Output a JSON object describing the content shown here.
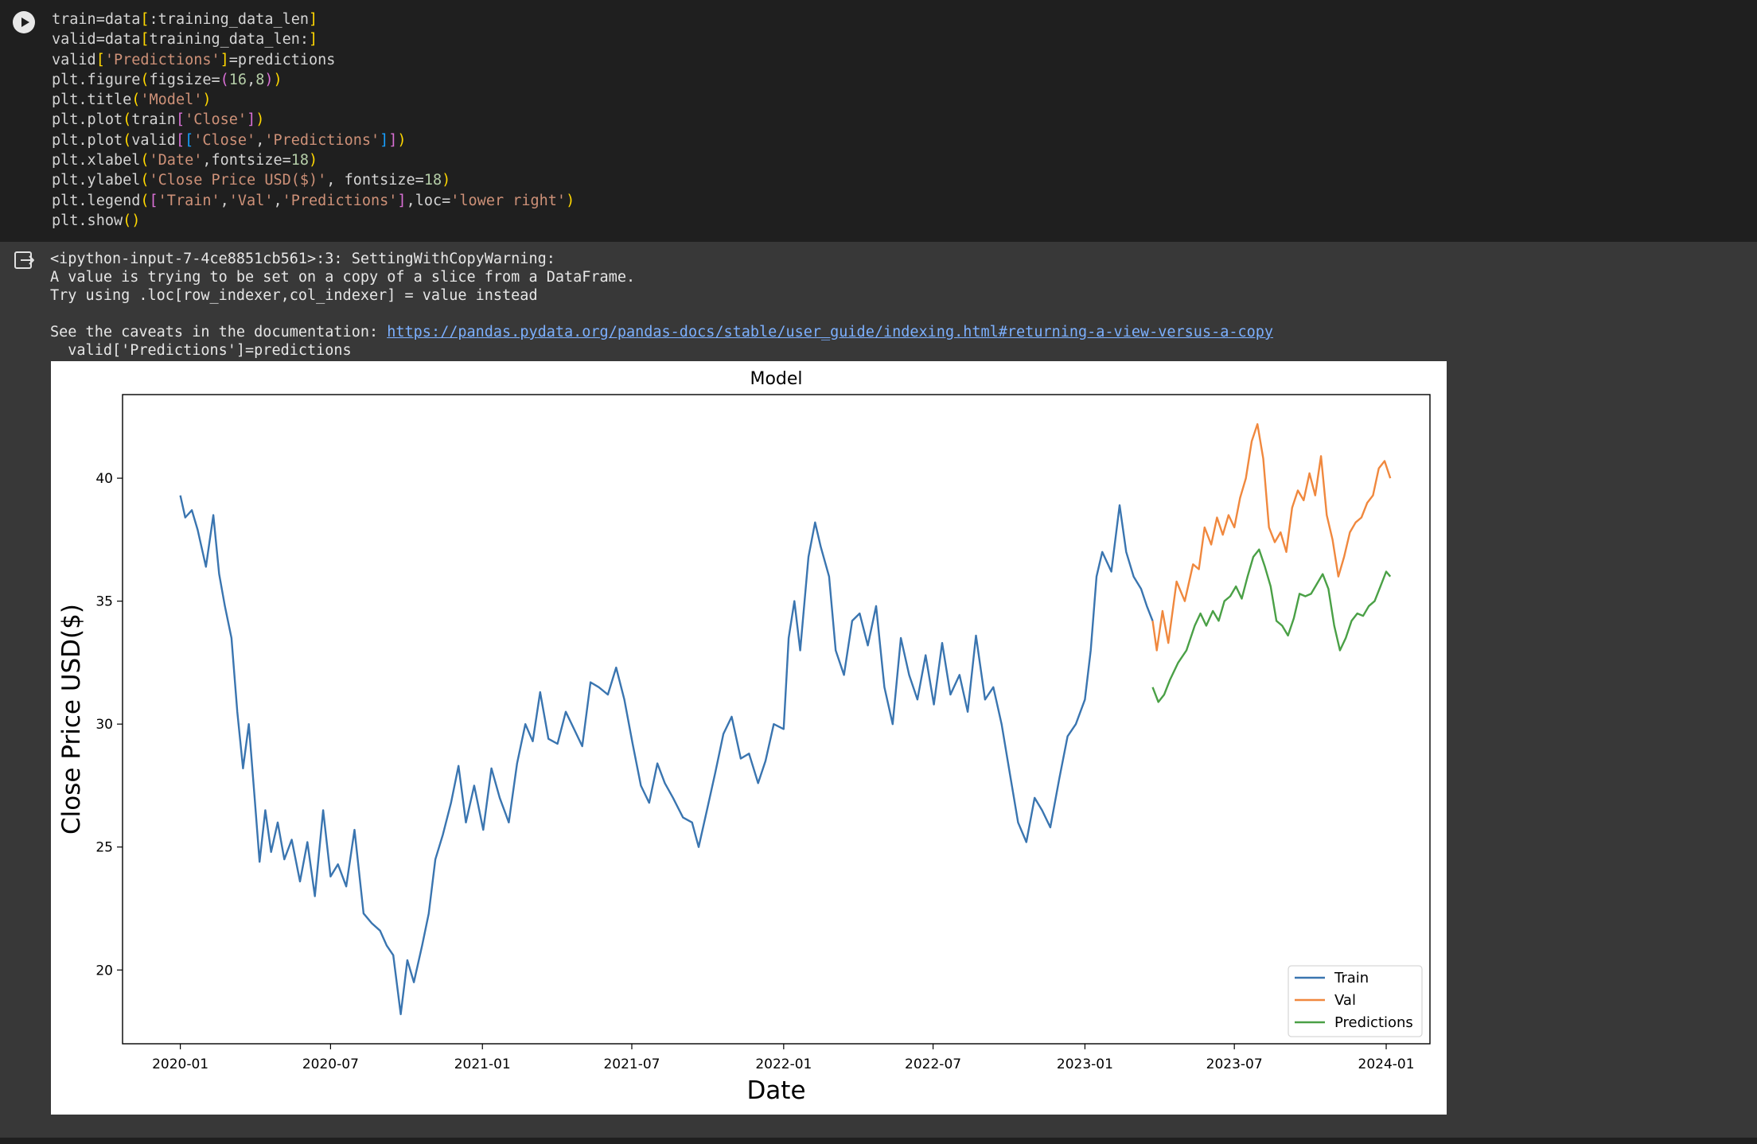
{
  "code_cell": {
    "lines": [
      [
        [
          "train=data",
          ""
        ],
        [
          "[",
          "b"
        ],
        [
          ":training_data_len",
          ""
        ],
        [
          "]",
          "b"
        ]
      ],
      [
        [
          "valid=data",
          ""
        ],
        [
          "[",
          "b"
        ],
        [
          "training_data_len:",
          ""
        ],
        [
          "]",
          "b"
        ]
      ],
      [
        [
          "valid",
          ""
        ],
        [
          "[",
          "b"
        ],
        [
          "'Predictions'",
          "s"
        ],
        [
          "]",
          "b"
        ],
        [
          "=predictions",
          ""
        ]
      ],
      [
        [
          "plt.figure",
          ""
        ],
        [
          "(",
          "b"
        ],
        [
          "figsize=",
          ""
        ],
        [
          "(",
          "b2"
        ],
        [
          "16",
          "n"
        ],
        [
          ",",
          ""
        ],
        [
          "8",
          "n"
        ],
        [
          ")",
          "b2"
        ],
        [
          ")",
          "b"
        ]
      ],
      [
        [
          "plt.title",
          ""
        ],
        [
          "(",
          "b"
        ],
        [
          "'Model'",
          "s"
        ],
        [
          ")",
          "b"
        ]
      ],
      [
        [
          "plt.plot",
          ""
        ],
        [
          "(",
          "b"
        ],
        [
          "train",
          ""
        ],
        [
          "[",
          "b2"
        ],
        [
          "'Close'",
          "s"
        ],
        [
          "]",
          "b2"
        ],
        [
          ")",
          "b"
        ]
      ],
      [
        [
          "plt.plot",
          ""
        ],
        [
          "(",
          "b"
        ],
        [
          "valid",
          ""
        ],
        [
          "[",
          "b2"
        ],
        [
          "[",
          "b3"
        ],
        [
          "'Close'",
          "s"
        ],
        [
          ",",
          ""
        ],
        [
          "'Predictions'",
          "s"
        ],
        [
          "]",
          "b3"
        ],
        [
          "]",
          "b2"
        ],
        [
          ")",
          "b"
        ]
      ],
      [
        [
          "plt.xlabel",
          ""
        ],
        [
          "(",
          "b"
        ],
        [
          "'Date'",
          "s"
        ],
        [
          ",fontsize=",
          ""
        ],
        [
          "18",
          "n"
        ],
        [
          ")",
          "b"
        ]
      ],
      [
        [
          "plt.ylabel",
          ""
        ],
        [
          "(",
          "b"
        ],
        [
          "'Close Price USD($)'",
          "s"
        ],
        [
          ", fontsize=",
          ""
        ],
        [
          "18",
          "n"
        ],
        [
          ")",
          "b"
        ]
      ],
      [
        [
          "plt.legend",
          ""
        ],
        [
          "(",
          "b"
        ],
        [
          "[",
          "b2"
        ],
        [
          "'Train'",
          "s"
        ],
        [
          ",",
          ""
        ],
        [
          "'Val'",
          "s"
        ],
        [
          ",",
          ""
        ],
        [
          "'Predictions'",
          "s"
        ],
        [
          "]",
          "b2"
        ],
        [
          ",loc=",
          ""
        ],
        [
          "'lower right'",
          "s"
        ],
        [
          ")",
          "b"
        ]
      ],
      [
        [
          "plt.show",
          ""
        ],
        [
          "()",
          "b"
        ]
      ]
    ]
  },
  "output": {
    "warning_line1": "<ipython-input-7-4ce8851cb561>:3: SettingWithCopyWarning:",
    "warning_line2": "A value is trying to be set on a copy of a slice from a DataFrame.",
    "warning_line3": "Try using .loc[row_indexer,col_indexer] = value instead",
    "caveats_prefix": "See the caveats in the documentation: ",
    "caveats_link": "https://pandas.pydata.org/pandas-docs/stable/user_guide/indexing.html#returning-a-view-versus-a-copy",
    "source_line": "  valid['Predictions']=predictions"
  },
  "chart_data": {
    "type": "line",
    "title": "Model",
    "xlabel": "Date",
    "ylabel": "Close Price USD($)",
    "x_ticks": [
      "2020-01",
      "2020-07",
      "2021-01",
      "2021-07",
      "2022-01",
      "2022-07",
      "2023-01",
      "2023-07",
      "2024-01"
    ],
    "y_ticks": [
      20,
      25,
      30,
      35,
      40
    ],
    "xlim": [
      "2019-10-23",
      "2024-02-23"
    ],
    "ylim": [
      17.0,
      43.4
    ],
    "legend_location": "lower right",
    "series": [
      {
        "name": "Train",
        "color": "#3a75b0",
        "points": [
          [
            "2020-01-01",
            39.3
          ],
          [
            "2020-01-07",
            38.4
          ],
          [
            "2020-01-15",
            38.7
          ],
          [
            "2020-01-22",
            37.9
          ],
          [
            "2020-02-01",
            36.4
          ],
          [
            "2020-02-10",
            38.5
          ],
          [
            "2020-02-17",
            36.1
          ],
          [
            "2020-02-24",
            34.8
          ],
          [
            "2020-03-03",
            33.5
          ],
          [
            "2020-03-10",
            30.5
          ],
          [
            "2020-03-17",
            28.2
          ],
          [
            "2020-03-24",
            30.0
          ],
          [
            "2020-03-31",
            27.0
          ],
          [
            "2020-04-06",
            24.4
          ],
          [
            "2020-04-13",
            26.5
          ],
          [
            "2020-04-20",
            24.8
          ],
          [
            "2020-04-28",
            26.0
          ],
          [
            "2020-05-06",
            24.5
          ],
          [
            "2020-05-15",
            25.3
          ],
          [
            "2020-05-25",
            23.6
          ],
          [
            "2020-06-03",
            25.2
          ],
          [
            "2020-06-12",
            23.0
          ],
          [
            "2020-06-22",
            26.5
          ],
          [
            "2020-07-01",
            23.8
          ],
          [
            "2020-07-10",
            24.3
          ],
          [
            "2020-07-20",
            23.4
          ],
          [
            "2020-07-30",
            25.7
          ],
          [
            "2020-08-10",
            22.3
          ],
          [
            "2020-08-20",
            21.9
          ],
          [
            "2020-08-30",
            21.6
          ],
          [
            "2020-09-07",
            21.0
          ],
          [
            "2020-09-15",
            20.6
          ],
          [
            "2020-09-24",
            18.2
          ],
          [
            "2020-10-02",
            20.4
          ],
          [
            "2020-10-10",
            19.5
          ],
          [
            "2020-10-20",
            21.0
          ],
          [
            "2020-10-28",
            22.3
          ],
          [
            "2020-11-05",
            24.5
          ],
          [
            "2020-11-14",
            25.5
          ],
          [
            "2020-11-24",
            26.8
          ],
          [
            "2020-12-03",
            28.3
          ],
          [
            "2020-12-12",
            26.0
          ],
          [
            "2020-12-22",
            27.5
          ],
          [
            "2021-01-02",
            25.7
          ],
          [
            "2021-01-12",
            28.2
          ],
          [
            "2021-01-22",
            27.0
          ],
          [
            "2021-02-02",
            26.0
          ],
          [
            "2021-02-12",
            28.4
          ],
          [
            "2021-02-22",
            30.0
          ],
          [
            "2021-03-03",
            29.3
          ],
          [
            "2021-03-12",
            31.3
          ],
          [
            "2021-03-22",
            29.4
          ],
          [
            "2021-04-02",
            29.2
          ],
          [
            "2021-04-12",
            30.5
          ],
          [
            "2021-04-22",
            29.8
          ],
          [
            "2021-05-02",
            29.1
          ],
          [
            "2021-05-12",
            31.7
          ],
          [
            "2021-05-22",
            31.5
          ],
          [
            "2021-06-02",
            31.2
          ],
          [
            "2021-06-12",
            32.3
          ],
          [
            "2021-06-22",
            31.0
          ],
          [
            "2021-07-02",
            29.2
          ],
          [
            "2021-07-12",
            27.5
          ],
          [
            "2021-07-22",
            26.8
          ],
          [
            "2021-08-01",
            28.4
          ],
          [
            "2021-08-10",
            27.6
          ],
          [
            "2021-08-20",
            27.0
          ],
          [
            "2021-09-01",
            26.2
          ],
          [
            "2021-09-12",
            26.0
          ],
          [
            "2021-09-20",
            25.0
          ],
          [
            "2021-09-30",
            26.5
          ],
          [
            "2021-10-10",
            28.0
          ],
          [
            "2021-10-20",
            29.6
          ],
          [
            "2021-10-30",
            30.3
          ],
          [
            "2021-11-10",
            28.6
          ],
          [
            "2021-11-20",
            28.8
          ],
          [
            "2021-12-01",
            27.6
          ],
          [
            "2021-12-10",
            28.5
          ],
          [
            "2021-12-20",
            30.0
          ],
          [
            "2022-01-01",
            29.8
          ],
          [
            "2022-01-07",
            33.5
          ],
          [
            "2022-01-14",
            35.0
          ],
          [
            "2022-01-21",
            33.0
          ],
          [
            "2022-01-31",
            36.8
          ],
          [
            "2022-02-08",
            38.2
          ],
          [
            "2022-02-15",
            37.2
          ],
          [
            "2022-02-25",
            36.0
          ],
          [
            "2022-03-05",
            33.0
          ],
          [
            "2022-03-15",
            32.0
          ],
          [
            "2022-03-25",
            34.2
          ],
          [
            "2022-04-03",
            34.5
          ],
          [
            "2022-04-13",
            33.2
          ],
          [
            "2022-04-23",
            34.8
          ],
          [
            "2022-05-03",
            31.5
          ],
          [
            "2022-05-13",
            30.0
          ],
          [
            "2022-05-23",
            33.5
          ],
          [
            "2022-06-02",
            32.0
          ],
          [
            "2022-06-12",
            31.0
          ],
          [
            "2022-06-22",
            32.8
          ],
          [
            "2022-07-02",
            30.8
          ],
          [
            "2022-07-12",
            33.3
          ],
          [
            "2022-07-22",
            31.2
          ],
          [
            "2022-08-02",
            32.0
          ],
          [
            "2022-08-12",
            30.5
          ],
          [
            "2022-08-22",
            33.6
          ],
          [
            "2022-09-02",
            31.0
          ],
          [
            "2022-09-12",
            31.5
          ],
          [
            "2022-09-22",
            30.0
          ],
          [
            "2022-10-02",
            28.0
          ],
          [
            "2022-10-12",
            26.0
          ],
          [
            "2022-10-22",
            25.2
          ],
          [
            "2022-11-01",
            27.0
          ],
          [
            "2022-11-10",
            26.5
          ],
          [
            "2022-11-20",
            25.8
          ],
          [
            "2022-12-01",
            27.8
          ],
          [
            "2022-12-11",
            29.5
          ],
          [
            "2022-12-21",
            30.0
          ],
          [
            "2023-01-01",
            31.0
          ],
          [
            "2023-01-08",
            33.0
          ],
          [
            "2023-01-15",
            36.0
          ],
          [
            "2023-01-22",
            37.0
          ],
          [
            "2023-02-02",
            36.2
          ],
          [
            "2023-02-12",
            38.9
          ],
          [
            "2023-02-20",
            37.0
          ],
          [
            "2023-03-01",
            36.0
          ],
          [
            "2023-03-10",
            35.5
          ],
          [
            "2023-03-17",
            34.8
          ],
          [
            "2023-03-24",
            34.2
          ]
        ]
      },
      {
        "name": "Val",
        "color": "#f0883e",
        "points": [
          [
            "2023-03-24",
            34.2
          ],
          [
            "2023-03-29",
            33.0
          ],
          [
            "2023-04-05",
            34.6
          ],
          [
            "2023-04-12",
            33.3
          ],
          [
            "2023-04-22",
            35.8
          ],
          [
            "2023-05-02",
            35.0
          ],
          [
            "2023-05-12",
            36.5
          ],
          [
            "2023-05-19",
            36.3
          ],
          [
            "2023-05-26",
            38.0
          ],
          [
            "2023-06-03",
            37.3
          ],
          [
            "2023-06-10",
            38.4
          ],
          [
            "2023-06-17",
            37.7
          ],
          [
            "2023-06-24",
            38.5
          ],
          [
            "2023-07-01",
            38.0
          ],
          [
            "2023-07-08",
            39.2
          ],
          [
            "2023-07-15",
            40.0
          ],
          [
            "2023-07-22",
            41.5
          ],
          [
            "2023-07-29",
            42.2
          ],
          [
            "2023-08-05",
            40.8
          ],
          [
            "2023-08-12",
            38.0
          ],
          [
            "2023-08-19",
            37.4
          ],
          [
            "2023-08-26",
            37.8
          ],
          [
            "2023-09-02",
            37.0
          ],
          [
            "2023-09-09",
            38.8
          ],
          [
            "2023-09-16",
            39.5
          ],
          [
            "2023-09-23",
            39.1
          ],
          [
            "2023-09-30",
            40.2
          ],
          [
            "2023-10-07",
            39.3
          ],
          [
            "2023-10-14",
            40.9
          ],
          [
            "2023-10-21",
            38.5
          ],
          [
            "2023-10-28",
            37.5
          ],
          [
            "2023-11-04",
            36.0
          ],
          [
            "2023-11-11",
            36.8
          ],
          [
            "2023-11-18",
            37.8
          ],
          [
            "2023-11-25",
            38.2
          ],
          [
            "2023-12-02",
            38.4
          ],
          [
            "2023-12-09",
            39.0
          ],
          [
            "2023-12-16",
            39.3
          ],
          [
            "2023-12-23",
            40.4
          ],
          [
            "2023-12-30",
            40.7
          ],
          [
            "2024-01-06",
            40.0
          ]
        ]
      },
      {
        "name": "Predictions",
        "color": "#4aa046",
        "points": [
          [
            "2023-03-24",
            31.5
          ],
          [
            "2023-03-31",
            30.9
          ],
          [
            "2023-04-07",
            31.2
          ],
          [
            "2023-04-14",
            31.8
          ],
          [
            "2023-04-24",
            32.5
          ],
          [
            "2023-05-04",
            33.0
          ],
          [
            "2023-05-14",
            34.0
          ],
          [
            "2023-05-21",
            34.5
          ],
          [
            "2023-05-28",
            34.0
          ],
          [
            "2023-06-05",
            34.6
          ],
          [
            "2023-06-12",
            34.2
          ],
          [
            "2023-06-19",
            35.0
          ],
          [
            "2023-06-26",
            35.2
          ],
          [
            "2023-07-03",
            35.6
          ],
          [
            "2023-07-10",
            35.1
          ],
          [
            "2023-07-17",
            36.0
          ],
          [
            "2023-07-24",
            36.8
          ],
          [
            "2023-07-31",
            37.1
          ],
          [
            "2023-08-07",
            36.4
          ],
          [
            "2023-08-14",
            35.6
          ],
          [
            "2023-08-21",
            34.2
          ],
          [
            "2023-08-28",
            34.0
          ],
          [
            "2023-09-04",
            33.6
          ],
          [
            "2023-09-11",
            34.3
          ],
          [
            "2023-09-18",
            35.3
          ],
          [
            "2023-09-25",
            35.2
          ],
          [
            "2023-10-02",
            35.3
          ],
          [
            "2023-10-09",
            35.7
          ],
          [
            "2023-10-16",
            36.1
          ],
          [
            "2023-10-23",
            35.5
          ],
          [
            "2023-10-30",
            34.0
          ],
          [
            "2023-11-06",
            33.0
          ],
          [
            "2023-11-13",
            33.5
          ],
          [
            "2023-11-20",
            34.2
          ],
          [
            "2023-11-27",
            34.5
          ],
          [
            "2023-12-04",
            34.4
          ],
          [
            "2023-12-11",
            34.8
          ],
          [
            "2023-12-18",
            35.0
          ],
          [
            "2023-12-25",
            35.6
          ],
          [
            "2024-01-01",
            36.2
          ],
          [
            "2024-01-06",
            36.0
          ]
        ]
      }
    ]
  }
}
